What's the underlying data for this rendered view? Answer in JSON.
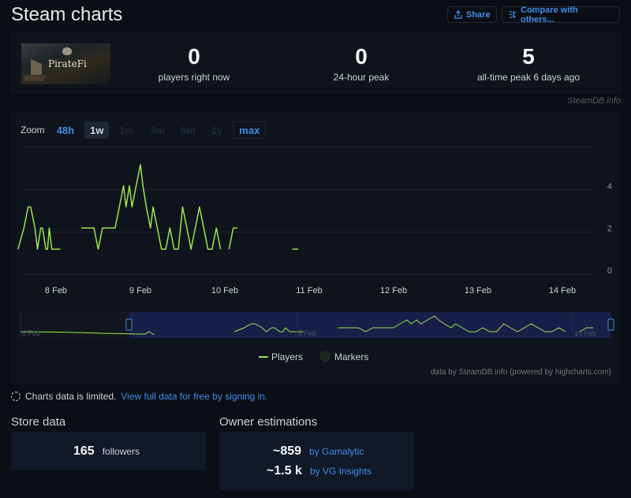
{
  "header": {
    "title": "Steam charts",
    "share_label": "Share",
    "compare_label": "Compare with others..."
  },
  "game": {
    "name": "PirateFi"
  },
  "stats": [
    {
      "value": "0",
      "label": "players right now"
    },
    {
      "value": "0",
      "label": "24-hour peak"
    },
    {
      "value": "5",
      "label": "all-time peak 6 days ago"
    }
  ],
  "watermark": "SteamDB.info",
  "zoom": {
    "label": "Zoom",
    "buttons": [
      "48h",
      "1w",
      "1m",
      "3m",
      "6m",
      "1y",
      "max"
    ],
    "active": "1w"
  },
  "chart_data": {
    "type": "line",
    "x_tick_labels": [
      "8 Feb",
      "9 Feb",
      "10 Feb",
      "11 Feb",
      "12 Feb",
      "13 Feb",
      "14 Feb"
    ],
    "y_tick_labels": [
      "0",
      "2",
      "4"
    ],
    "ylim": [
      0,
      5.5
    ],
    "legend": [
      "Players",
      "Markers"
    ],
    "legend_position": "bottom",
    "grid": true,
    "series": [
      {
        "name": "Players",
        "color": "#9be64f",
        "segments": [
          [
            [
              7.55,
              1
            ],
            [
              7.62,
              2
            ],
            [
              7.67,
              3
            ],
            [
              7.7,
              3
            ],
            [
              7.75,
              2
            ],
            [
              7.78,
              1
            ],
            [
              7.82,
              2
            ],
            [
              7.84,
              2
            ],
            [
              7.88,
              1
            ],
            [
              7.9,
              1
            ],
            [
              7.92,
              2
            ],
            [
              7.95,
              1
            ],
            [
              7.98,
              1
            ],
            [
              8.05,
              1
            ]
          ],
          [
            [
              8.3,
              2
            ],
            [
              8.45,
              2
            ],
            [
              8.5,
              1
            ],
            [
              8.55,
              2
            ],
            [
              8.7,
              2
            ],
            [
              8.75,
              3
            ],
            [
              8.8,
              4
            ],
            [
              8.83,
              3
            ],
            [
              8.87,
              4
            ],
            [
              8.9,
              3
            ],
            [
              8.95,
              4
            ],
            [
              9.0,
              5
            ],
            [
              9.03,
              4
            ],
            [
              9.07,
              3
            ],
            [
              9.12,
              2
            ],
            [
              9.15,
              3
            ],
            [
              9.2,
              2
            ],
            [
              9.25,
              1
            ],
            [
              9.3,
              1
            ],
            [
              9.35,
              2
            ],
            [
              9.4,
              1
            ],
            [
              9.45,
              1
            ],
            [
              9.5,
              3
            ],
            [
              9.55,
              2
            ],
            [
              9.6,
              1
            ],
            [
              9.65,
              2
            ],
            [
              9.7,
              3
            ],
            [
              9.75,
              2
            ],
            [
              9.8,
              1
            ],
            [
              9.85,
              1
            ],
            [
              9.9,
              2
            ],
            [
              9.95,
              1
            ]
          ],
          [
            [
              10.05,
              1
            ],
            [
              10.1,
              2
            ],
            [
              10.15,
              2
            ]
          ],
          [
            [
              10.8,
              1
            ],
            [
              10.87,
              1
            ]
          ]
        ]
      }
    ],
    "navigator": {
      "tick_labels": [
        "6 Feb",
        "8 Feb",
        "10 Feb",
        "12 Feb",
        "14 Feb"
      ]
    }
  },
  "credit": "data by SteamDB.info (powered by highcharts.com)",
  "limited": {
    "text": "Charts data is limited.",
    "link": "View full data for free by signing in."
  },
  "store": {
    "title": "Store data",
    "followers_value": "165",
    "followers_label": "followers"
  },
  "owners": {
    "title": "Owner estimations",
    "rows": [
      {
        "value": "~859",
        "source": "by Gamalytic"
      },
      {
        "value": "~1.5 k",
        "source": "by VG Insights"
      }
    ]
  }
}
